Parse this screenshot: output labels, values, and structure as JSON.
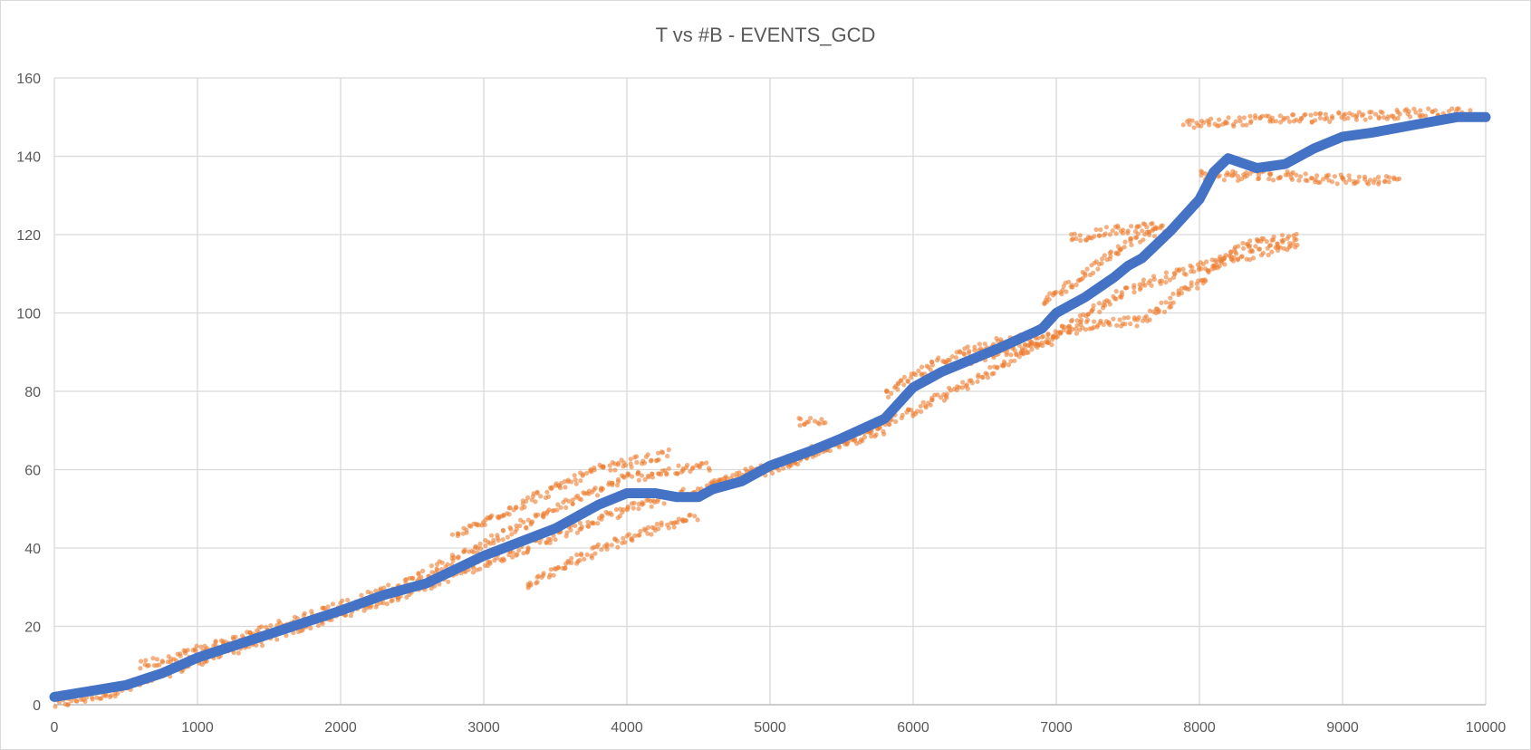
{
  "chart_data": {
    "type": "scatter",
    "title": "T vs #B - EVENTS_GCD",
    "xlabel": "",
    "ylabel": "",
    "xlim": [
      0,
      10000
    ],
    "ylim": [
      0,
      160
    ],
    "x_ticks": [
      "0",
      "1000",
      "2000",
      "3000",
      "4000",
      "5000",
      "6000",
      "7000",
      "8000",
      "9000",
      "10000"
    ],
    "y_ticks": [
      "0",
      "20",
      "40",
      "60",
      "80",
      "100",
      "120",
      "140",
      "160"
    ],
    "grid": true,
    "legend": "none",
    "series": [
      {
        "color": "#ED7D31",
        "style": "scatter-points",
        "segments": [
          [
            [
              0,
              0
            ],
            [
              500,
              4
            ],
            [
              1000,
              11
            ],
            [
              1500,
              17
            ],
            [
              2000,
              23
            ],
            [
              2500,
              29
            ],
            [
              3000,
              36
            ],
            [
              3500,
              43
            ],
            [
              4000,
              50
            ],
            [
              4500,
              55
            ],
            [
              5000,
              60
            ],
            [
              5500,
              67
            ],
            [
              6000,
              75
            ],
            [
              6500,
              84
            ],
            [
              7000,
              95
            ],
            [
              7500,
              106
            ],
            [
              8000,
              112
            ],
            [
              8500,
              116
            ],
            [
              8700,
              118
            ]
          ],
          [
            [
              600,
              10
            ],
            [
              1200,
              16
            ],
            [
              1800,
              23
            ],
            [
              2400,
              30
            ],
            [
              3000,
              41
            ],
            [
              3500,
              50
            ],
            [
              4000,
              58
            ],
            [
              4600,
              61
            ]
          ],
          [
            [
              2800,
              43
            ],
            [
              3300,
              52
            ],
            [
              3800,
              60
            ],
            [
              4300,
              64
            ]
          ],
          [
            [
              4600,
              56
            ],
            [
              5000,
              61
            ],
            [
              5400,
              66
            ],
            [
              5800,
              70
            ]
          ],
          [
            [
              5800,
              79
            ],
            [
              6200,
              88
            ],
            [
              6600,
              93
            ],
            [
              6900,
              94
            ]
          ],
          [
            [
              6400,
              88
            ],
            [
              6900,
              92
            ],
            [
              7200,
              97
            ],
            [
              7600,
              98
            ],
            [
              8000,
              108
            ],
            [
              8300,
              118
            ],
            [
              8700,
              119
            ]
          ],
          [
            [
              6900,
              102
            ],
            [
              7200,
              110
            ],
            [
              7500,
              118
            ],
            [
              7800,
              122
            ]
          ],
          [
            [
              7100,
              119
            ],
            [
              7400,
              121
            ],
            [
              7700,
              122
            ]
          ],
          [
            [
              7900,
              148
            ],
            [
              8500,
              149.5
            ],
            [
              9000,
              150
            ],
            [
              9500,
              151
            ],
            [
              9900,
              151
            ]
          ],
          [
            [
              8000,
              135
            ],
            [
              8600,
              135
            ],
            [
              9000,
              134
            ],
            [
              9400,
              134
            ]
          ],
          [
            [
              3300,
              30
            ],
            [
              3700,
              38
            ],
            [
              4100,
              44
            ],
            [
              4500,
              48
            ]
          ],
          [
            [
              5200,
              72
            ],
            [
              5400,
              73
            ]
          ]
        ]
      },
      {
        "color": "#4472C4",
        "style": "thick-line",
        "points": [
          [
            0,
            2
          ],
          [
            250,
            3.5
          ],
          [
            500,
            5
          ],
          [
            750,
            8
          ],
          [
            1000,
            12
          ],
          [
            1500,
            18
          ],
          [
            2000,
            24
          ],
          [
            2300,
            28
          ],
          [
            2600,
            31
          ],
          [
            3000,
            38
          ],
          [
            3500,
            45
          ],
          [
            3800,
            51
          ],
          [
            4000,
            54
          ],
          [
            4200,
            54
          ],
          [
            4350,
            53
          ],
          [
            4500,
            53
          ],
          [
            4600,
            55
          ],
          [
            4800,
            57
          ],
          [
            5000,
            61
          ],
          [
            5300,
            65
          ],
          [
            5500,
            68
          ],
          [
            5800,
            73
          ],
          [
            6000,
            81
          ],
          [
            6200,
            85
          ],
          [
            6600,
            91
          ],
          [
            6900,
            96
          ],
          [
            7000,
            100
          ],
          [
            7200,
            104
          ],
          [
            7400,
            109
          ],
          [
            7500,
            112
          ],
          [
            7600,
            114
          ],
          [
            7800,
            121
          ],
          [
            8000,
            129
          ],
          [
            8100,
            136
          ],
          [
            8200,
            139.5
          ],
          [
            8400,
            137
          ],
          [
            8600,
            138
          ],
          [
            8800,
            142
          ],
          [
            9000,
            145
          ],
          [
            9200,
            146
          ],
          [
            9500,
            148
          ],
          [
            9800,
            150
          ],
          [
            10000,
            150
          ]
        ]
      }
    ]
  }
}
